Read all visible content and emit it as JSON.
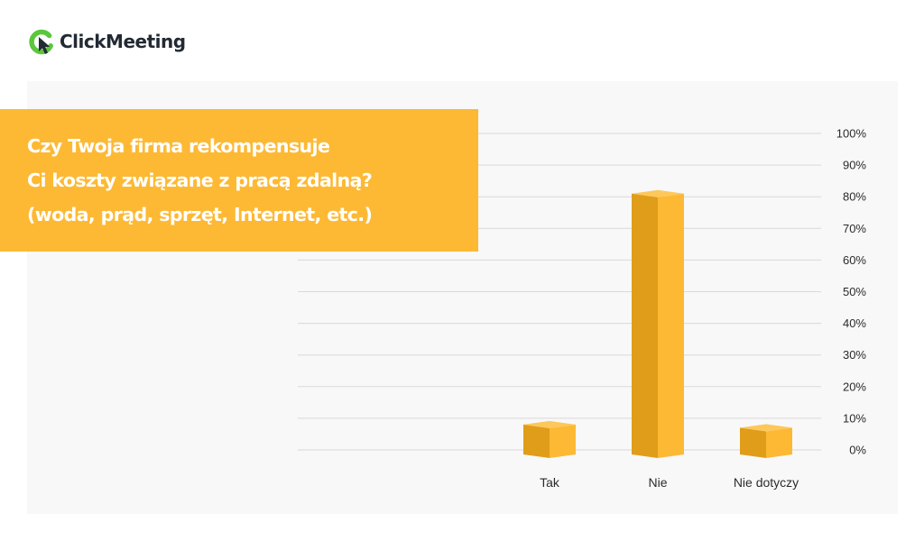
{
  "brand": {
    "name": "ClickMeeting",
    "mark_color": "#5cc63d",
    "text_color": "#222a33",
    "mark_icon": "clickmeeting-logo-icon"
  },
  "title_lines": [
    "Czy Twoja firma rekompensuje",
    "Ci koszty związane z pracą zdalną?",
    "(woda, prąd, sprzęt, Internet, etc.)"
  ],
  "colors": {
    "accent": "#fdb934",
    "bar_front": "#fdb934",
    "bar_side": "#e09d19",
    "bar_top": "#fec75a",
    "panel": "#f8f8f8",
    "grid": "#d9d9d9"
  },
  "chart_data": {
    "type": "bar",
    "style": "3d-column",
    "categories": [
      "Tak",
      "Nie",
      "Nie dotyczy"
    ],
    "values": [
      8,
      81,
      7
    ],
    "ylim": [
      0,
      100
    ],
    "yticks": [
      0,
      10,
      20,
      30,
      40,
      50,
      60,
      70,
      80,
      90,
      100
    ],
    "ytick_format": "%",
    "y_axis_side": "right",
    "grid": true,
    "legend": false,
    "title": "Czy Twoja firma rekompensuje Ci koszty związane z pracą zdalną? (woda, prąd, sprzęt, Internet, etc.)"
  }
}
